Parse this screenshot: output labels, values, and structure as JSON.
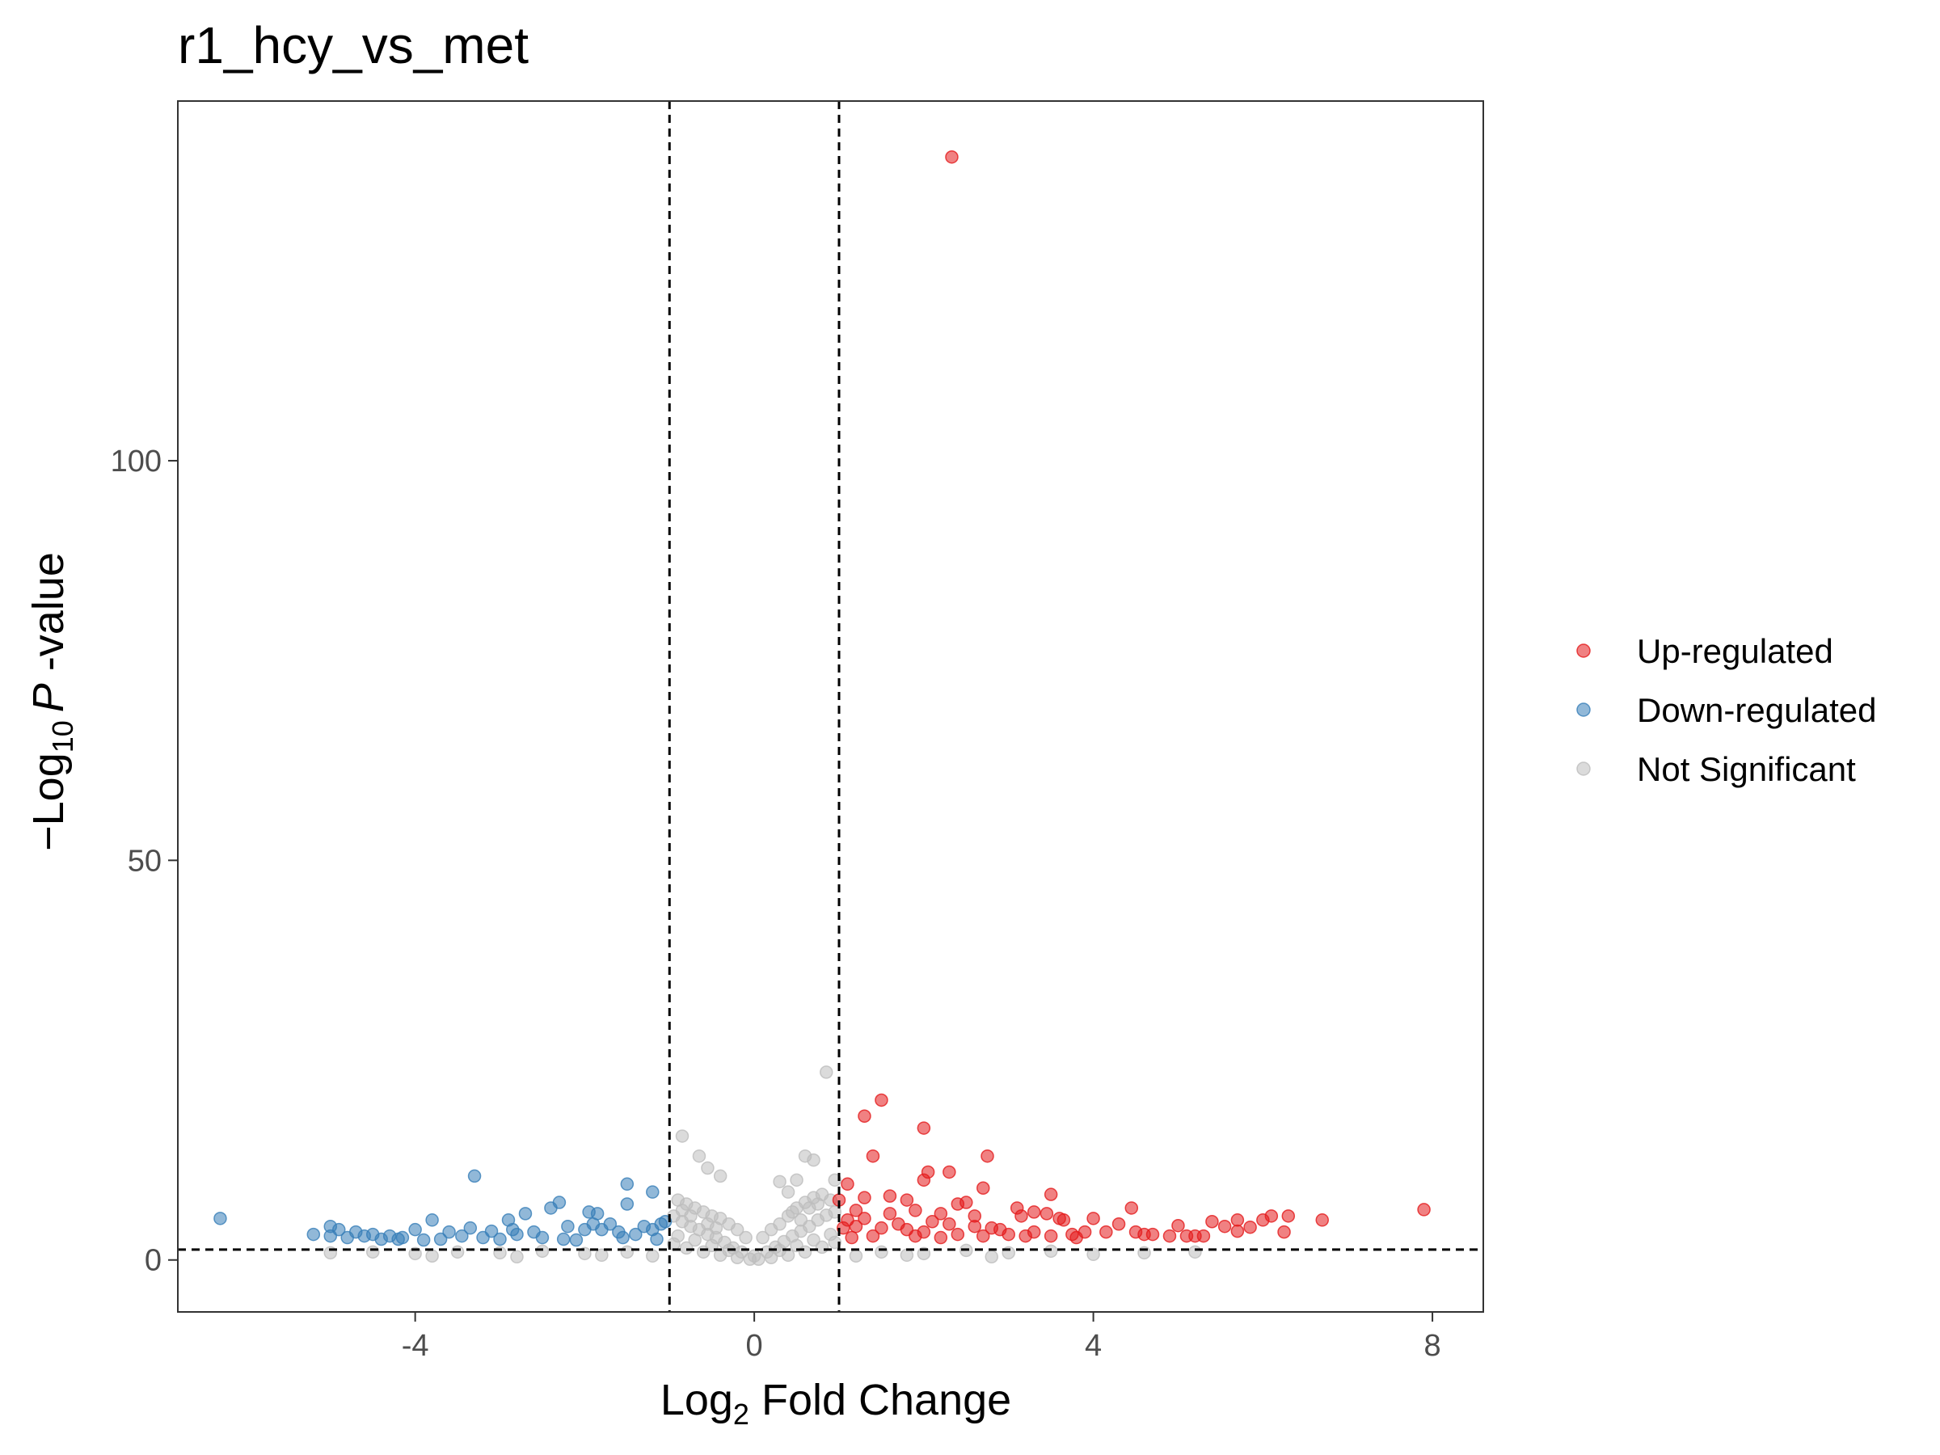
{
  "chart_data": {
    "type": "scatter",
    "title": "r1_hcy_vs_met",
    "xlabel": {
      "base": "Log",
      "sub": "2",
      "rest": " Fold Change"
    },
    "ylabel": {
      "prefix": "−Log",
      "sub": "10",
      "italic": "P",
      "rest": " -value"
    },
    "xlim": [
      -6.8,
      8.6
    ],
    "ylim": [
      -6.5,
      145
    ],
    "xticks": [
      -4,
      0,
      4,
      8
    ],
    "xtick_labels": [
      "-4",
      "0",
      "4",
      "8"
    ],
    "yticks": [
      0,
      50,
      100
    ],
    "ytick_labels": [
      "0",
      "50",
      "100"
    ],
    "grid": false,
    "legend_position": "right",
    "thresholds": {
      "log2fc": [
        -1,
        1
      ],
      "neg_log10_p": 1.3
    },
    "series": [
      {
        "name": "Up-regulated",
        "color": "#e41a1c",
        "points": [
          [
            2.33,
            138
          ],
          [
            7.9,
            6.3
          ],
          [
            1.5,
            20
          ],
          [
            1.3,
            18
          ],
          [
            2.0,
            16.5
          ],
          [
            1.4,
            13
          ],
          [
            2.75,
            13
          ],
          [
            2.05,
            11
          ],
          [
            2.3,
            11
          ],
          [
            2.0,
            10
          ],
          [
            1.1,
            9.5
          ],
          [
            2.7,
            9
          ],
          [
            3.5,
            8.2
          ],
          [
            1.6,
            8
          ],
          [
            1.8,
            7.5
          ],
          [
            2.5,
            7.2
          ],
          [
            2.4,
            7
          ],
          [
            3.1,
            6.5
          ],
          [
            4.45,
            6.5
          ],
          [
            1.0,
            7.5
          ],
          [
            1.2,
            6.2
          ],
          [
            1.3,
            7.8
          ],
          [
            1.9,
            6.2
          ],
          [
            2.2,
            5.8
          ],
          [
            2.6,
            5.5
          ],
          [
            3.45,
            5.8
          ],
          [
            3.6,
            5.2
          ],
          [
            3.65,
            5.0
          ],
          [
            3.15,
            5.5
          ],
          [
            4.0,
            5.2
          ],
          [
            4.3,
            4.5
          ],
          [
            5.4,
            4.8
          ],
          [
            5.7,
            5.0
          ],
          [
            6.0,
            5.0
          ],
          [
            6.1,
            5.5
          ],
          [
            6.3,
            5.5
          ],
          [
            6.7,
            5.0
          ],
          [
            5.55,
            4.2
          ],
          [
            5.85,
            4.1
          ],
          [
            6.25,
            3.5
          ],
          [
            4.5,
            3.5
          ],
          [
            4.7,
            3.2
          ],
          [
            4.9,
            3.0
          ],
          [
            5.0,
            4.3
          ],
          [
            5.1,
            3.0
          ],
          [
            5.2,
            3.0
          ],
          [
            5.3,
            3.0
          ],
          [
            4.15,
            3.5
          ],
          [
            3.9,
            3.5
          ],
          [
            3.3,
            3.5
          ],
          [
            3.0,
            3.2
          ],
          [
            3.2,
            3.0
          ],
          [
            2.9,
            3.8
          ],
          [
            2.8,
            4.0
          ],
          [
            2.6,
            4.2
          ],
          [
            2.3,
            4.5
          ],
          [
            2.1,
            4.8
          ],
          [
            1.7,
            4.5
          ],
          [
            1.5,
            4.0
          ],
          [
            1.2,
            4.2
          ],
          [
            1.05,
            4.0
          ],
          [
            1.1,
            5.0
          ],
          [
            1.3,
            5.2
          ],
          [
            1.6,
            5.8
          ],
          [
            1.8,
            3.8
          ],
          [
            2.0,
            3.5
          ],
          [
            2.4,
            3.2
          ],
          [
            1.4,
            3.0
          ],
          [
            1.9,
            3.0
          ],
          [
            2.7,
            3.0
          ],
          [
            3.5,
            3.0
          ],
          [
            3.75,
            3.2
          ],
          [
            4.6,
            3.2
          ],
          [
            5.7,
            3.6
          ],
          [
            3.3,
            6.0
          ],
          [
            3.8,
            2.8
          ],
          [
            2.2,
            2.8
          ],
          [
            1.15,
            2.8
          ]
        ]
      },
      {
        "name": "Down-regulated",
        "color": "#377eb8",
        "points": [
          [
            -6.3,
            5.2
          ],
          [
            -3.3,
            10.5
          ],
          [
            -1.5,
            9.5
          ],
          [
            -1.2,
            8.5
          ],
          [
            -2.3,
            7.2
          ],
          [
            -2.4,
            6.5
          ],
          [
            -2.7,
            5.8
          ],
          [
            -1.95,
            6.0
          ],
          [
            -1.85,
            5.8
          ],
          [
            -1.5,
            7.0
          ],
          [
            -2.9,
            5.0
          ],
          [
            -3.8,
            5.0
          ],
          [
            -5.2,
            3.2
          ],
          [
            -5.0,
            4.2
          ],
          [
            -4.9,
            3.8
          ],
          [
            -4.7,
            3.5
          ],
          [
            -4.5,
            3.2
          ],
          [
            -4.3,
            3.0
          ],
          [
            -4.15,
            2.8
          ],
          [
            -4.0,
            3.8
          ],
          [
            -3.6,
            3.5
          ],
          [
            -3.35,
            4.0
          ],
          [
            -3.1,
            3.6
          ],
          [
            -2.8,
            3.2
          ],
          [
            -2.6,
            3.5
          ],
          [
            -2.2,
            4.2
          ],
          [
            -2.0,
            3.8
          ],
          [
            -1.8,
            3.8
          ],
          [
            -1.6,
            3.5
          ],
          [
            -1.4,
            3.2
          ],
          [
            -1.2,
            3.8
          ],
          [
            -1.1,
            4.5
          ],
          [
            -1.05,
            4.8
          ],
          [
            -1.3,
            4.2
          ],
          [
            -1.7,
            4.5
          ],
          [
            -1.9,
            4.5
          ],
          [
            -5.0,
            3.0
          ],
          [
            -4.8,
            2.8
          ],
          [
            -4.6,
            3.0
          ],
          [
            -4.4,
            2.6
          ],
          [
            -4.2,
            2.6
          ],
          [
            -3.9,
            2.5
          ],
          [
            -3.7,
            2.6
          ],
          [
            -3.45,
            3.0
          ],
          [
            -3.2,
            2.8
          ],
          [
            -3.0,
            2.6
          ],
          [
            -2.5,
            2.8
          ],
          [
            -2.25,
            2.6
          ],
          [
            -1.55,
            2.8
          ],
          [
            -1.15,
            2.6
          ],
          [
            -2.1,
            2.5
          ],
          [
            -2.85,
            3.8
          ]
        ]
      },
      {
        "name": "Not Significant",
        "color": "#bdbdbd",
        "points": [
          [
            0.85,
            23.5
          ],
          [
            -0.85,
            15.5
          ],
          [
            -0.65,
            13
          ],
          [
            -0.55,
            11.5
          ],
          [
            -0.4,
            10.5
          ],
          [
            0.6,
            13
          ],
          [
            0.7,
            12.5
          ],
          [
            0.5,
            10
          ],
          [
            0.3,
            9.8
          ],
          [
            0.95,
            10
          ],
          [
            0.4,
            8.5
          ],
          [
            -0.9,
            7.5
          ],
          [
            -0.8,
            7
          ],
          [
            -0.7,
            6.5
          ],
          [
            -0.6,
            6
          ],
          [
            -0.5,
            5.5
          ],
          [
            -0.4,
            5.2
          ],
          [
            -0.3,
            4.5
          ],
          [
            -0.2,
            3.8
          ],
          [
            -0.1,
            2.8
          ],
          [
            0.1,
            2.8
          ],
          [
            0.2,
            3.8
          ],
          [
            0.3,
            4.5
          ],
          [
            0.4,
            5.5
          ],
          [
            0.5,
            6.5
          ],
          [
            0.6,
            7.2
          ],
          [
            0.7,
            7.8
          ],
          [
            0.8,
            8.2
          ],
          [
            0.9,
            7.5
          ],
          [
            -0.95,
            5.5
          ],
          [
            -0.85,
            4.8
          ],
          [
            -0.75,
            4.2
          ],
          [
            -0.65,
            3.8
          ],
          [
            -0.55,
            3.2
          ],
          [
            -0.45,
            2.8
          ],
          [
            -0.35,
            2.2
          ],
          [
            -0.25,
            1.5
          ],
          [
            -0.15,
            1.0
          ],
          [
            0.0,
            0.5
          ],
          [
            0.15,
            1.0
          ],
          [
            0.25,
            1.6
          ],
          [
            0.35,
            2.3
          ],
          [
            0.45,
            3.0
          ],
          [
            0.55,
            3.6
          ],
          [
            0.65,
            4.2
          ],
          [
            0.75,
            5.0
          ],
          [
            0.85,
            5.6
          ],
          [
            0.95,
            6.0
          ],
          [
            -0.9,
            3.0
          ],
          [
            -0.7,
            2.5
          ],
          [
            -0.5,
            1.8
          ],
          [
            -0.3,
            1.2
          ],
          [
            0.3,
            1.2
          ],
          [
            0.5,
            1.8
          ],
          [
            0.7,
            2.5
          ],
          [
            0.9,
            3.2
          ],
          [
            -0.95,
            2.0
          ],
          [
            0.95,
            2.2
          ],
          [
            -0.8,
            1.5
          ],
          [
            0.8,
            1.6
          ],
          [
            -0.6,
            1.0
          ],
          [
            0.6,
            1.0
          ],
          [
            -0.4,
            0.6
          ],
          [
            0.4,
            0.6
          ],
          [
            -0.2,
            0.3
          ],
          [
            0.2,
            0.3
          ],
          [
            0.05,
            0.1
          ],
          [
            -0.05,
            0.1
          ],
          [
            0.55,
            5.0
          ],
          [
            0.45,
            6.0
          ],
          [
            -0.55,
            4.5
          ],
          [
            -0.45,
            4.0
          ],
          [
            0.65,
            6.5
          ],
          [
            0.75,
            7.0
          ],
          [
            -0.75,
            5.5
          ],
          [
            -0.85,
            6.2
          ],
          [
            1.5,
            1.0
          ],
          [
            2.0,
            0.8
          ],
          [
            2.5,
            1.2
          ],
          [
            3.0,
            0.9
          ],
          [
            3.5,
            1.1
          ],
          [
            4.0,
            0.7
          ],
          [
            4.6,
            0.9
          ],
          [
            5.2,
            1.0
          ],
          [
            1.2,
            0.5
          ],
          [
            1.8,
            0.6
          ],
          [
            2.8,
            0.4
          ],
          [
            -1.5,
            1.0
          ],
          [
            -2.0,
            0.8
          ],
          [
            -2.5,
            1.1
          ],
          [
            -3.0,
            0.9
          ],
          [
            -3.5,
            1.0
          ],
          [
            -4.0,
            0.8
          ],
          [
            -4.5,
            1.0
          ],
          [
            -5.0,
            0.9
          ],
          [
            -1.2,
            0.5
          ],
          [
            -1.8,
            0.6
          ],
          [
            -2.8,
            0.4
          ],
          [
            -3.8,
            0.5
          ]
        ]
      }
    ]
  }
}
